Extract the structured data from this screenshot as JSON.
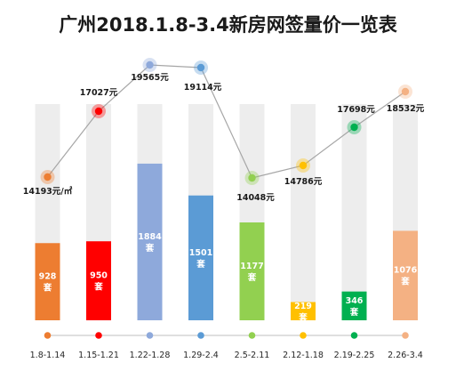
{
  "chart_data": {
    "type": "bar",
    "title": "广州2018.1.8-3.4新房网签量价一览表",
    "categories": [
      "1.8-1.14",
      "1.15-1.21",
      "1.22-1.28",
      "1.29-2.4",
      "2.5-2.11",
      "2.12-1.18",
      "2.19-2.25",
      "2.26-3.4"
    ],
    "ylim": [
      0,
      2600
    ],
    "series": [
      {
        "type": "bar",
        "values": [
          928,
          950,
          1884,
          1501,
          1177,
          219,
          346,
          1076
        ],
        "labels": [
          "928",
          "950",
          "1884",
          "1501",
          "1177",
          "219",
          "346",
          "1076"
        ],
        "unit": "套"
      },
      {
        "type": "line",
        "values": [
          14193,
          17027,
          19565,
          19114,
          14048,
          14786,
          17698,
          18532
        ],
        "labels": [
          "14193元/㎡",
          "17027元",
          "19565元",
          "19114元",
          "14048元",
          "14786元",
          "17698元",
          "18532元"
        ],
        "ylim": [
          11000,
          21000
        ]
      }
    ],
    "colors": [
      "#ED7D31",
      "#FF0000",
      "#8EA9DB",
      "#5B9BD5",
      "#92D050",
      "#FFC000",
      "#00B050",
      "#F4B183"
    ],
    "background_bar_color": "#EDEDED",
    "line_color": "#A6A6A6"
  }
}
